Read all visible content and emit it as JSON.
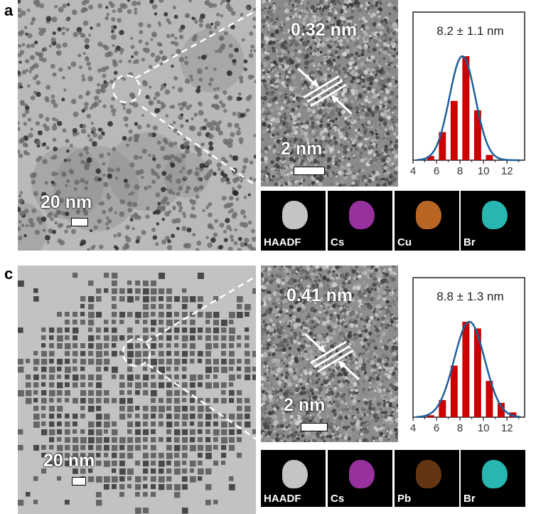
{
  "panels": [
    {
      "letter": "a",
      "tem_scale": "20 nm",
      "hrtem_spacing": "0.32 nm",
      "hrtem_scale": "2 nm",
      "tem_style": "spherical",
      "eds": [
        {
          "label": "HAADF",
          "color": "#e6e6e6"
        },
        {
          "label": "Cs",
          "color": "#b23ab8"
        },
        {
          "label": "Cu",
          "color": "#d9782a"
        },
        {
          "label": "Br",
          "color": "#2fd6d0"
        }
      ]
    },
    {
      "letter": "c",
      "tem_scale": "20 nm",
      "hrtem_spacing": "0.41 nm",
      "hrtem_scale": "2 nm",
      "tem_style": "cubic",
      "eds": [
        {
          "label": "HAADF",
          "color": "#e6e6e6"
        },
        {
          "label": "Cs",
          "color": "#b23ab8"
        },
        {
          "label": "Pb",
          "color": "#d9782a"
        },
        {
          "label": "Br",
          "color": "#2fd6d0"
        }
      ]
    }
  ],
  "chart_data": [
    {
      "type": "bar",
      "title": "8.2 ± 1.1 nm",
      "xlabel": "",
      "ylabel": "",
      "xlim": [
        4,
        13.5
      ],
      "xticks": [
        "4",
        "6",
        "8",
        "10",
        "12"
      ],
      "x": [
        4.5,
        5.5,
        6.5,
        7.5,
        8.5,
        9.5,
        10.5,
        12.5
      ],
      "values": [
        0.005,
        0.04,
        0.27,
        0.57,
        1.0,
        0.48,
        0.05,
        0.005
      ],
      "fit": {
        "type": "gaussian",
        "mean": 8.2,
        "sd": 1.1,
        "peak": 1.0
      },
      "bar_color": "#cc0000",
      "fit_color": "#1f5f99",
      "grid": false
    },
    {
      "type": "bar",
      "title": "8.8 ± 1.3 nm",
      "xlabel": "",
      "ylabel": "",
      "xlim": [
        4,
        13.5
      ],
      "xticks": [
        "4",
        "6",
        "8",
        "10",
        "12"
      ],
      "x": [
        5.5,
        6.5,
        7.5,
        8.5,
        9.5,
        10.5,
        11.5,
        12.5
      ],
      "values": [
        0.02,
        0.18,
        0.54,
        1.0,
        0.93,
        0.38,
        0.15,
        0.05
      ],
      "fit": {
        "type": "gaussian",
        "mean": 8.8,
        "sd": 1.3,
        "peak": 1.0
      },
      "bar_color": "#cc0000",
      "fit_color": "#1f5f99",
      "grid": false
    }
  ]
}
